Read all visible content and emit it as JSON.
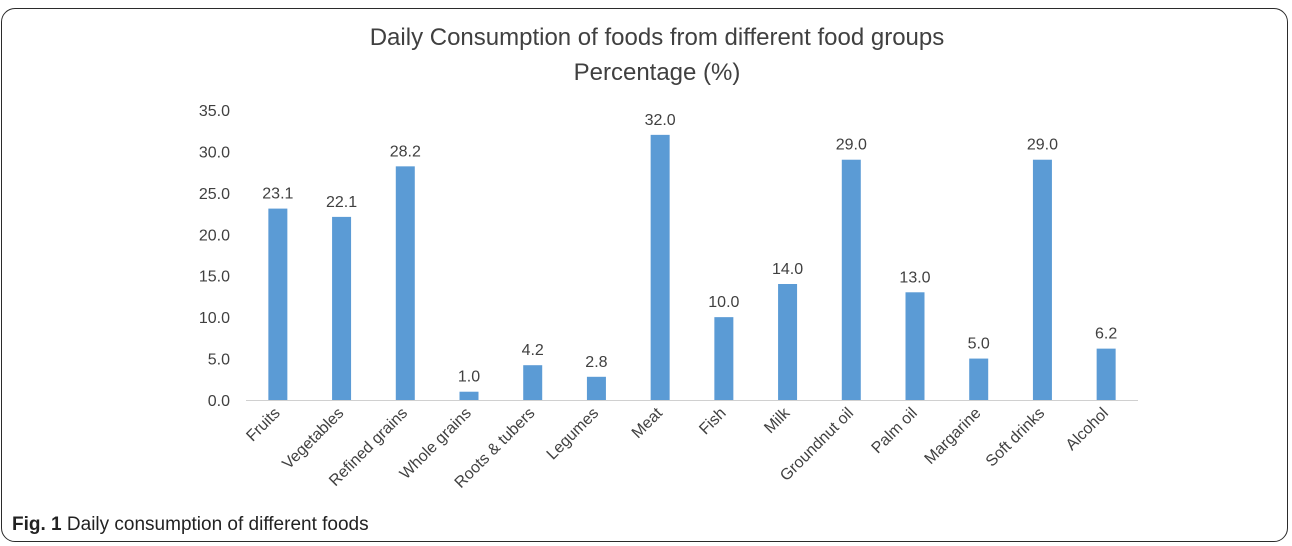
{
  "chart_data": {
    "type": "bar",
    "title": "Daily Consumption of foods from different food groups",
    "subtitle": "Percentage (%)",
    "xlabel": "",
    "ylabel": "",
    "categories": [
      "Fruits",
      "Vegetables",
      "Refined grains",
      "Whole grains",
      "Roots & tubers",
      "Legumes",
      "Meat",
      "Fish",
      "Milk",
      "Groundnut oil",
      "Palm oil",
      "Margarine",
      "Soft drinks",
      "Alcohol"
    ],
    "values": [
      23.1,
      22.1,
      28.2,
      1.0,
      4.2,
      2.8,
      32.0,
      10.0,
      14.0,
      29.0,
      13.0,
      5.0,
      29.0,
      6.2
    ],
    "data_labels": [
      "23.1",
      "22.1",
      "28.2",
      "1.0",
      "4.2",
      "2.8",
      "32.0",
      "10.0",
      "14.0",
      "29.0",
      "13.0",
      "5.0",
      "29.0",
      "6.2"
    ],
    "yticks": [
      "0.0",
      "5.0",
      "10.0",
      "15.0",
      "20.0",
      "25.0",
      "30.0",
      "35.0"
    ],
    "ylim": [
      0,
      35
    ],
    "grid": false,
    "legend": "none",
    "bar_color": "#5b9bd5"
  },
  "caption": {
    "label": "Fig. 1",
    "text": "Daily consumption of different foods"
  }
}
